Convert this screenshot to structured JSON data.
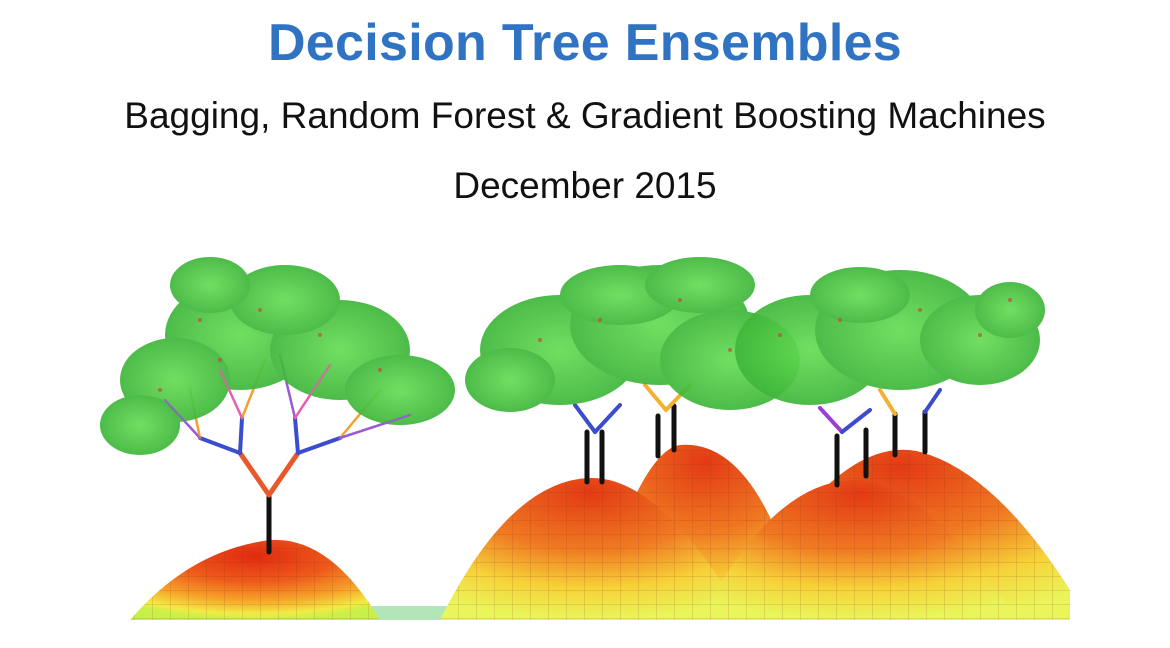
{
  "slide": {
    "title": "Decision Tree Ensembles",
    "subtitle": "Bagging, Random Forest & Gradient Boosting Machines",
    "date": "December 2015"
  },
  "colors": {
    "title": "#2f73c2",
    "text": "#111111",
    "leaf_green": "#5fd14a",
    "hill_red": "#e33a14",
    "hill_yellow": "#f4ee4a",
    "trunk": "#111111"
  },
  "illustration": {
    "icon": "tree-on-hill-illustration"
  }
}
